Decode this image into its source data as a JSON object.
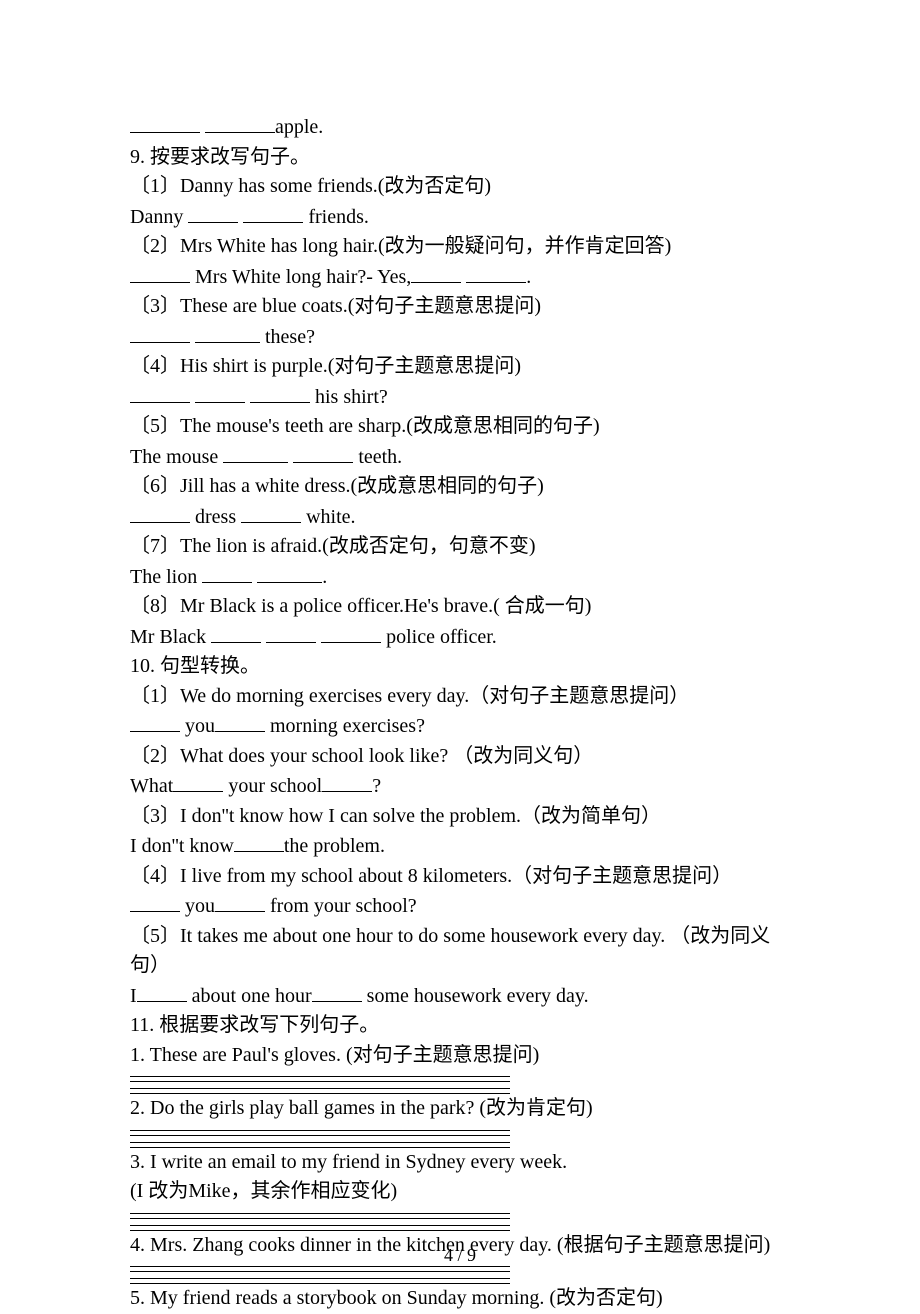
{
  "page_number": "4 / 9",
  "t": {
    "l0": "________ ________apple.",
    "q9_title": "9. 按要求改写句子。",
    "q9_1a": "〔1〕Danny has some friends.(改为否定句)",
    "q9_1b": "Danny ______ ______ friends.",
    "q9_2a": "〔2〕Mrs White has long hair.(改为一般疑问句，并作肯定回答)",
    "q9_2b": "______ Mrs White long hair?- Yes,_____ ______.",
    "q9_3a": "〔3〕These are blue coats.(对句子主题意思提问)",
    "q9_3b": "______ ______ these?",
    "q9_4a": "〔4〕His shirt is purple.(对句子主题意思提问)",
    "q9_4b": "______ _____ ______ his shirt?",
    "q9_5a": "〔5〕The mouse's teeth are sharp.(改成意思相同的句子)",
    "q9_5b": "The mouse ______ ______ teeth.",
    "q9_6a": "〔6〕Jill has a white dress.(改成意思相同的句子)",
    "q9_6b": "______ dress ______ white.",
    "q9_7a": "〔7〕The lion is afraid.(改成否定句，句意不变)",
    "q9_7b": "The lion _____ _______.",
    "q9_8a": "〔8〕Mr Black is a police officer.He's brave.( 合成一句)",
    "q9_8b": "Mr Black _____ _____ ______ police officer.",
    "q10_title": "10. 句型转换。",
    "q10_1a": "〔1〕We do morning exercises every day.（对句子主题意思提问）",
    "q10_1b": "_____ you_____ morning exercises?",
    "q10_2a": "〔2〕What does your school look like? （改为同义句）",
    "q10_2b": "What_____ your school_____?",
    "q10_3a": "〔3〕I don''t know how I can solve the problem.（改为简单句）",
    "q10_3b": "I don''t know_____the problem.",
    "q10_4a": "〔4〕I live from my school about 8 kilometers.（对句子主题意思提问）",
    "q10_4b": "_____ you_____ from your school?",
    "q10_5a": "〔5〕It takes me about one hour to do some housework every day. （改为同义句）",
    "q10_5b": "I_____ about one hour_____ some housework every day.",
    "q11_title": "11. 根据要求改写下列句子。",
    "q11_1": "1. These are Paul's gloves. (对句子主题意思提问)",
    "q11_2": "2. Do the girls play ball games in the park? (改为肯定句)",
    "q11_3a": "3. I write an email to my friend in Sydney every week.",
    "q11_3b": "(I 改为Mike，其余作相应变化)",
    "q11_4": "4. Mrs. Zhang cooks dinner in the kitchen every day. (根据句子主题意思提问)",
    "q11_5": "5. My friend reads a storybook on Sunday morning. (改为否定句)"
  }
}
